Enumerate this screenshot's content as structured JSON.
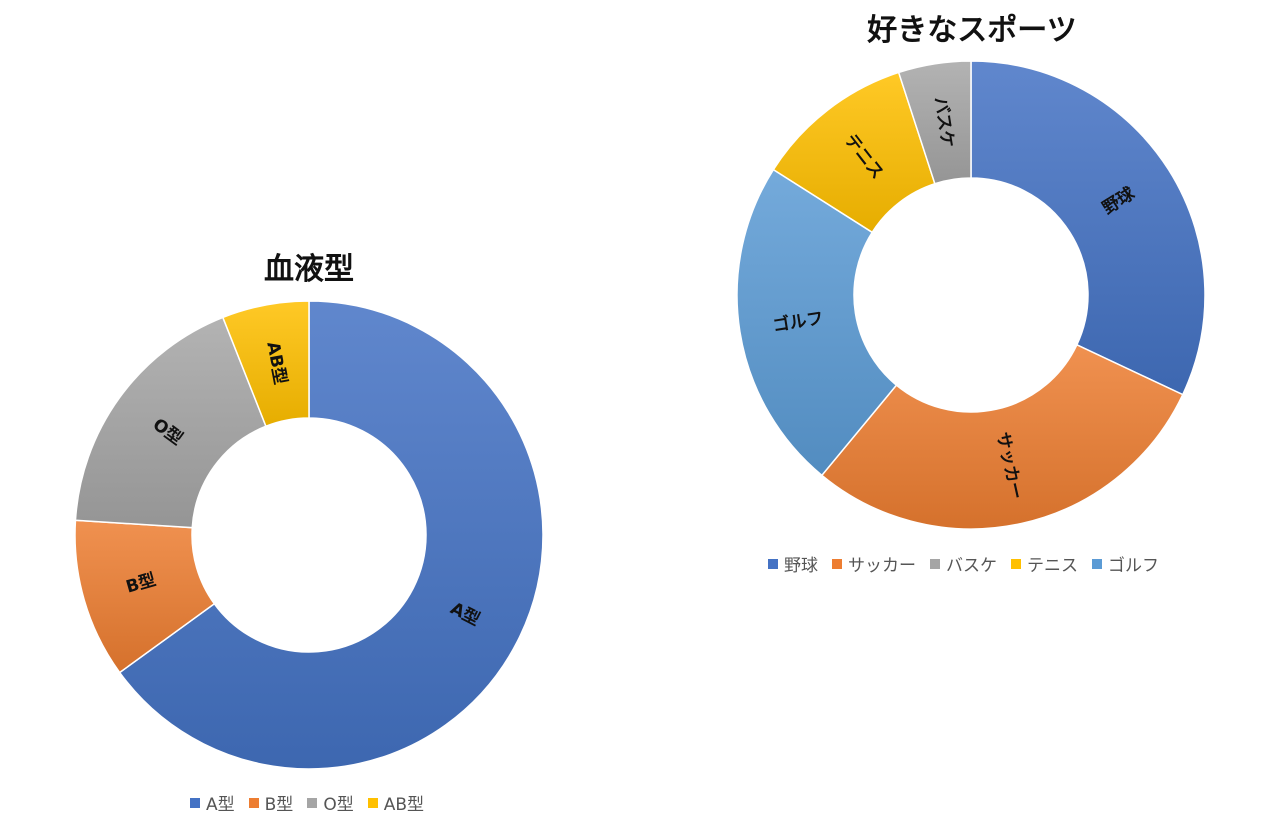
{
  "chart_data": [
    {
      "type": "pie",
      "title": "血液型",
      "categories": [
        "A型",
        "B型",
        "O型",
        "AB型"
      ],
      "values": [
        65,
        11,
        18,
        6
      ],
      "colors": [
        "#4472c4",
        "#ed7d31",
        "#a5a5a5",
        "#ffc000"
      ],
      "donut": true,
      "legend_position": "bottom"
    },
    {
      "type": "pie",
      "title": "好きなスポーツ",
      "categories": [
        "野球",
        "サッカー",
        "バスケ",
        "テニス",
        "ゴルフ"
      ],
      "values": [
        32,
        29,
        5,
        11,
        23
      ],
      "slice_order": [
        "野球",
        "サッカー",
        "ゴルフ",
        "テニス",
        "バスケ"
      ],
      "colors": [
        "#4472c4",
        "#ed7d31",
        "#a5a5a5",
        "#ffc000",
        "#5b9bd5"
      ],
      "donut": true,
      "legend_position": "bottom"
    }
  ]
}
